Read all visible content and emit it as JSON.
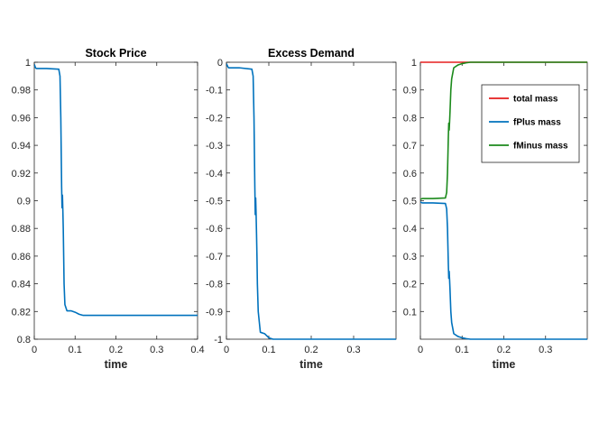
{
  "chart_data": [
    {
      "type": "line",
      "title": "Stock Price",
      "xlabel": "time",
      "ylabel": "",
      "xlim": [
        0,
        0.4
      ],
      "ylim": [
        0.8,
        1.0
      ],
      "xticks": [
        0,
        0.1,
        0.2,
        0.3,
        0.4
      ],
      "xtick_labels": [
        "0",
        "0.1",
        "0.2",
        "0.3",
        "0.4"
      ],
      "yticks": [
        0.8,
        0.82,
        0.84,
        0.86,
        0.88,
        0.9,
        0.92,
        0.94,
        0.96,
        0.98,
        1.0
      ],
      "ytick_labels": [
        "0.8",
        "0.82",
        "0.84",
        "0.86",
        "0.88",
        "0.9",
        "0.92",
        "0.94",
        "0.96",
        "0.98",
        "1"
      ],
      "grid": false,
      "series": [
        {
          "color": "#0072BD",
          "x": [
            0,
            0.003,
            0.005,
            0.03,
            0.06,
            0.063,
            0.065,
            0.067,
            0.068,
            0.069,
            0.07,
            0.071,
            0.072,
            0.073,
            0.075,
            0.08,
            0.09,
            0.1,
            0.11,
            0.12,
            0.2,
            0.3,
            0.4
          ],
          "y": [
            0.9985,
            0.996,
            0.9955,
            0.9955,
            0.995,
            0.99,
            0.96,
            0.91,
            0.895,
            0.904,
            0.893,
            0.88,
            0.86,
            0.84,
            0.825,
            0.8205,
            0.8205,
            0.8195,
            0.818,
            0.8172,
            0.8172,
            0.8172,
            0.8172
          ]
        }
      ]
    },
    {
      "type": "line",
      "title": "Excess Demand",
      "xlabel": "time",
      "ylabel": "",
      "xlim": [
        0,
        0.4
      ],
      "ylim": [
        -1.0,
        0.0
      ],
      "xticks": [
        0,
        0.1,
        0.2,
        0.3
      ],
      "xtick_labels": [
        "0",
        "0.1",
        "0.2",
        "0.3"
      ],
      "yticks": [
        -1.0,
        -0.9,
        -0.8,
        -0.7,
        -0.6,
        -0.5,
        -0.4,
        -0.3,
        -0.2,
        -0.1,
        0.0
      ],
      "ytick_labels": [
        "-1",
        "-0.9",
        "-0.8",
        "-0.7",
        "-0.6",
        "-0.5",
        "-0.4",
        "-0.3",
        "-0.2",
        "-0.1",
        "0"
      ],
      "grid": false,
      "series": [
        {
          "color": "#0072BD",
          "x": [
            0,
            0.003,
            0.005,
            0.03,
            0.06,
            0.063,
            0.065,
            0.067,
            0.068,
            0.069,
            0.07,
            0.071,
            0.072,
            0.073,
            0.075,
            0.08,
            0.09,
            0.1,
            0.11,
            0.2,
            0.3,
            0.4
          ],
          "y": [
            -0.005,
            -0.015,
            -0.02,
            -0.02,
            -0.025,
            -0.05,
            -0.2,
            -0.45,
            -0.55,
            -0.49,
            -0.55,
            -0.62,
            -0.7,
            -0.8,
            -0.9,
            -0.975,
            -0.98,
            -0.995,
            -1.0,
            -1.0,
            -1.0,
            -1.0
          ]
        }
      ]
    },
    {
      "type": "line",
      "title": "",
      "xlabel": "time",
      "ylabel": "",
      "xlim": [
        0,
        0.4
      ],
      "ylim": [
        0.0,
        1.0
      ],
      "xticks": [
        0,
        0.1,
        0.2,
        0.3
      ],
      "xtick_labels": [
        "0",
        "0.1",
        "0.2",
        "0.3"
      ],
      "yticks": [
        0.1,
        0.2,
        0.3,
        0.4,
        0.5,
        0.6,
        0.7,
        0.8,
        0.9,
        1.0
      ],
      "ytick_labels": [
        "0.1",
        "0.2",
        "0.3",
        "0.4",
        "0.5",
        "0.6",
        "0.7",
        "0.8",
        "0.9",
        "1"
      ],
      "grid": false,
      "legend_position": "top-right",
      "series": [
        {
          "name": "total mass",
          "color": "#E51E1E",
          "x": [
            0,
            0.4
          ],
          "y": [
            1.0,
            1.0
          ]
        },
        {
          "name": "fPlus mass",
          "color": "#0072BD",
          "x": [
            0,
            0.005,
            0.03,
            0.06,
            0.063,
            0.065,
            0.067,
            0.068,
            0.069,
            0.07,
            0.071,
            0.072,
            0.073,
            0.075,
            0.08,
            0.09,
            0.1,
            0.11,
            0.12,
            0.2,
            0.3,
            0.4
          ],
          "y": [
            0.495,
            0.492,
            0.492,
            0.49,
            0.47,
            0.4,
            0.27,
            0.22,
            0.245,
            0.215,
            0.18,
            0.14,
            0.1,
            0.06,
            0.02,
            0.01,
            0.005,
            0.002,
            0.0,
            0.0,
            0.0,
            0.0
          ]
        },
        {
          "name": "fMinus mass",
          "color": "#1B8A1B",
          "x": [
            0,
            0.005,
            0.03,
            0.06,
            0.063,
            0.065,
            0.067,
            0.068,
            0.069,
            0.07,
            0.071,
            0.072,
            0.073,
            0.075,
            0.08,
            0.09,
            0.1,
            0.11,
            0.12,
            0.2,
            0.3,
            0.4
          ],
          "y": [
            0.505,
            0.508,
            0.508,
            0.51,
            0.53,
            0.6,
            0.73,
            0.78,
            0.755,
            0.785,
            0.82,
            0.86,
            0.9,
            0.94,
            0.98,
            0.99,
            0.995,
            0.998,
            1.0,
            1.0,
            1.0,
            1.0
          ]
        }
      ]
    }
  ]
}
